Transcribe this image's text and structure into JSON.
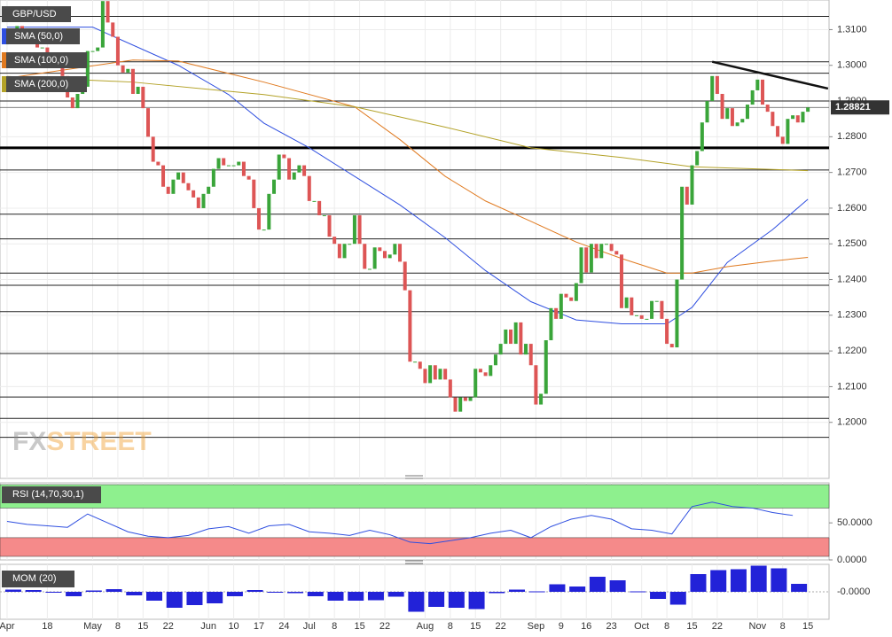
{
  "chart_data": [
    {
      "type": "candlestick",
      "title": "GBP/USD",
      "categories": [
        "Apr",
        null,
        null,
        null,
        null,
        null,
        null,
        null,
        "18",
        null,
        null,
        null,
        null,
        null,
        null,
        null,
        null,
        "May",
        null,
        null,
        null,
        null,
        "8",
        null,
        null,
        null,
        null,
        "15",
        null,
        null,
        null,
        null,
        "22",
        null,
        null,
        null,
        null,
        null,
        null,
        null,
        "Jun",
        null,
        null,
        null,
        null,
        "10",
        null,
        null,
        null,
        null,
        "17",
        null,
        null,
        null,
        null,
        "24",
        null,
        null,
        null,
        null,
        "Jul",
        null,
        null,
        null,
        null,
        "8",
        null,
        null,
        null,
        null,
        "15",
        null,
        null,
        null,
        null,
        "22",
        null,
        null,
        null,
        null,
        null,
        null,
        null,
        "Aug",
        null,
        null,
        null,
        null,
        "8",
        null,
        null,
        null,
        null,
        "15",
        null,
        null,
        null,
        null,
        "22",
        null,
        null,
        null,
        null,
        null,
        null,
        "Sep",
        null,
        null,
        null,
        null,
        "9",
        null,
        null,
        null,
        null,
        "16",
        null,
        null,
        null,
        null,
        "23",
        null,
        null,
        null,
        null,
        null,
        "Oct",
        null,
        null,
        null,
        null,
        "8",
        null,
        null,
        null,
        null,
        "15",
        null,
        null,
        null,
        null,
        "22",
        null,
        null,
        null,
        null,
        null,
        null,
        null,
        "Nov",
        null,
        null,
        null,
        null,
        "8",
        null,
        null,
        null,
        null,
        "15"
      ],
      "close": [
        1.306,
        1.307,
        1.311,
        1.306,
        1.309,
        1.308,
        1.305,
        1.305,
        1.3,
        1.3,
        1.3,
        1.297,
        1.291,
        1.288,
        1.292,
        1.294,
        1.304,
        1.304,
        1.305,
        1.318,
        1.312,
        1.308,
        1.3,
        1.298,
        1.299,
        1.292,
        1.294,
        1.288,
        1.28,
        1.273,
        1.272,
        1.266,
        1.264,
        1.268,
        1.27,
        1.267,
        1.265,
        1.263,
        1.26,
        1.264,
        1.266,
        1.271,
        1.274,
        1.272,
        1.272,
        1.272,
        1.273,
        1.269,
        1.268,
        1.26,
        1.254,
        1.254,
        1.264,
        1.268,
        1.275,
        1.274,
        1.268,
        1.27,
        1.272,
        1.269,
        1.262,
        1.262,
        1.258,
        1.258,
        1.252,
        1.25,
        1.246,
        1.25,
        1.25,
        1.258,
        1.25,
        1.243,
        1.243,
        1.249,
        1.248,
        1.246,
        1.247,
        1.25,
        1.245,
        1.237,
        1.217,
        1.217,
        1.215,
        1.211,
        1.216,
        1.212,
        1.215,
        1.212,
        1.207,
        1.203,
        1.207,
        1.206,
        1.207,
        1.215,
        1.214,
        1.213,
        1.216,
        1.219,
        1.222,
        1.226,
        1.222,
        1.228,
        1.219,
        1.222,
        1.216,
        1.205,
        1.208,
        1.223,
        1.232,
        1.229,
        1.236,
        1.235,
        1.234,
        1.239,
        1.249,
        1.242,
        1.25,
        1.246,
        1.25,
        1.25,
        1.248,
        1.247,
        1.232,
        1.235,
        1.23,
        1.23,
        1.229,
        1.229,
        1.234,
        1.234,
        1.229,
        1.222,
        1.221,
        1.24,
        1.266,
        1.261,
        1.272,
        1.276,
        1.284,
        1.29,
        1.297,
        1.292,
        1.285,
        1.288,
        1.283,
        1.284,
        1.285,
        1.289,
        1.293,
        1.296,
        1.289,
        1.287,
        1.283,
        1.28,
        1.278,
        1.285,
        1.286,
        1.284,
        1.287,
        1.2882
      ],
      "up_color": "#3aa53a",
      "down_color": "#dd5555",
      "series": [
        {
          "name": "SMA (50,0)",
          "color": "#2f4fe0",
          "x": [
            0,
            17,
            34,
            44,
            51,
            60,
            69,
            78,
            87,
            95,
            104,
            113,
            122,
            131,
            136,
            143,
            152,
            159
          ],
          "values": [
            1.3107,
            1.3107,
            1.3,
            1.2918,
            1.2838,
            1.2769,
            1.2689,
            1.2609,
            1.2517,
            1.2425,
            1.2338,
            1.2287,
            1.2276,
            1.2276,
            1.2322,
            1.2448,
            1.254,
            1.2625
          ]
        },
        {
          "name": "SMA (100,0)",
          "color": "#e07a20",
          "x": [
            0,
            25,
            34,
            51,
            69,
            78,
            87,
            95,
            104,
            113,
            122,
            131,
            136,
            143,
            152,
            159
          ],
          "values": [
            1.2964,
            1.3015,
            1.3012,
            1.2953,
            1.2884,
            1.2792,
            1.2689,
            1.262,
            1.2563,
            1.2505,
            1.2459,
            1.2418,
            1.2418,
            1.2436,
            1.2452,
            1.2462
          ]
        },
        {
          "name": "SMA (200,0)",
          "color": "#b3a228",
          "x": [
            0,
            25,
            51,
            69,
            87,
            104,
            122,
            136,
            159
          ],
          "values": [
            1.2969,
            1.2953,
            1.2918,
            1.2884,
            1.2827,
            1.2769,
            1.2742,
            1.2716,
            1.2705
          ]
        }
      ],
      "levels": [
        1.3137,
        1.301,
        1.2978,
        1.29,
        1.2707,
        1.2583,
        1.2514,
        1.2418,
        1.2384,
        1.231,
        1.2193,
        1.2071,
        1.2011,
        1.1958
      ],
      "major_level": 1.2769,
      "trendline": {
        "x": [
          140,
          163
        ],
        "values": [
          1.301,
          1.2935
        ]
      },
      "last_price": 1.28821,
      "xlim": [
        -1.4,
        163.2
      ],
      "ylim": [
        1.1843,
        1.3183
      ],
      "yticks": [
        {
          "value": 1.2,
          "label": "1.2000"
        },
        {
          "value": 1.21,
          "label": "1.2100"
        },
        {
          "value": 1.22,
          "label": "1.2200"
        },
        {
          "value": 1.23,
          "label": "1.2300"
        },
        {
          "value": 1.24,
          "label": "1.2400"
        },
        {
          "value": 1.25,
          "label": "1.2500"
        },
        {
          "value": 1.26,
          "label": "1.2600"
        },
        {
          "value": 1.27,
          "label": "1.2700"
        },
        {
          "value": 1.28,
          "label": "1.2800"
        },
        {
          "value": 1.29,
          "label": "1.2900"
        },
        {
          "value": 1.3,
          "label": "1.3000"
        },
        {
          "value": 1.31,
          "label": "1.3100"
        }
      ],
      "grid": true,
      "watermark": [
        "FX",
        "STREET"
      ]
    },
    {
      "type": "line",
      "title": "RSI (14,70,30,1)",
      "color": "#2f4fe0",
      "x": [
        0,
        4,
        8,
        12,
        16,
        20,
        24,
        28,
        32,
        36,
        40,
        44,
        48,
        52,
        56,
        60,
        64,
        68,
        72,
        76,
        80,
        84,
        88,
        92,
        96,
        100,
        104,
        108,
        112,
        116,
        120,
        124,
        128,
        132,
        136,
        140,
        144,
        148,
        152,
        156
      ],
      "values": [
        52,
        48,
        46,
        44,
        62,
        50,
        38,
        32,
        30,
        33,
        42,
        45,
        36,
        46,
        48,
        38,
        36,
        33,
        40,
        34,
        24,
        22,
        26,
        30,
        36,
        40,
        30,
        45,
        55,
        60,
        55,
        42,
        40,
        35,
        72,
        78,
        72,
        70,
        64,
        60
      ],
      "overbought": 70,
      "oversold": 30,
      "overbought_color": "#8ef08e",
      "oversold_color": "#f58a8a",
      "ylim": [
        0,
        104
      ],
      "yticks": [
        {
          "value": 0,
          "label": "0.0000"
        },
        {
          "value": 50,
          "label": "50.0000"
        }
      ]
    },
    {
      "type": "bar",
      "title": "MOM (20)",
      "color": "#2222d8",
      "x": [
        0,
        4,
        8,
        12,
        16,
        20,
        24,
        28,
        32,
        36,
        40,
        44,
        48,
        52,
        56,
        60,
        64,
        68,
        72,
        76,
        80,
        84,
        88,
        92,
        96,
        100,
        104,
        108,
        112,
        116,
        120,
        124,
        128,
        132,
        136,
        140,
        144,
        148,
        152,
        156
      ],
      "values": [
        0.005,
        0.004,
        0,
        -0.01,
        0.003,
        0.006,
        -0.008,
        -0.02,
        -0.036,
        -0.03,
        -0.026,
        -0.01,
        0.004,
        0,
        -0.003,
        -0.01,
        -0.02,
        -0.02,
        -0.019,
        -0.011,
        -0.045,
        -0.034,
        -0.036,
        -0.039,
        -0.003,
        0.005,
        0.001,
        0.017,
        0.012,
        0.034,
        0.026,
        0.001,
        -0.016,
        -0.029,
        0.04,
        0.049,
        0.051,
        0.059,
        0.053,
        0.018
      ],
      "ylim": [
        -0.062,
        0.062
      ],
      "yticks": [
        {
          "value": 0,
          "label": "-0.0000"
        }
      ]
    }
  ]
}
